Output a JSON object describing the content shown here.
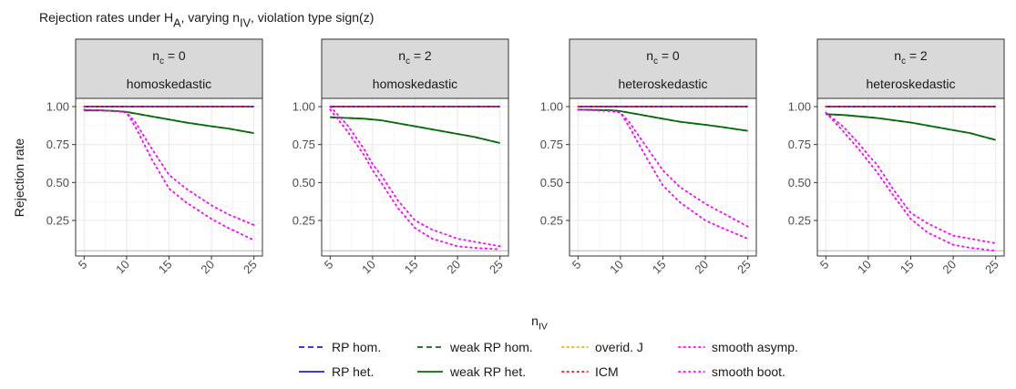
{
  "chart_data": {
    "type": "line",
    "title": [
      {
        "text": "Rejection rates under H"
      },
      {
        "text": "A",
        "sub": true
      },
      {
        "text": ", varying n"
      },
      {
        "text": "IV",
        "sub": true
      },
      {
        "text": ", violation type sign(z)"
      }
    ],
    "xlabel": [
      {
        "text": "n"
      },
      {
        "text": "IV",
        "sub": true
      }
    ],
    "ylabel": "Rejection rate",
    "facets": [
      {
        "label_top": [
          {
            "text": "n"
          },
          {
            "text": "c",
            "sub": true
          },
          {
            "text": " = 0"
          }
        ],
        "label_bottom": "homoskedastic"
      },
      {
        "label_top": [
          {
            "text": "n"
          },
          {
            "text": "c",
            "sub": true
          },
          {
            "text": " = 2"
          }
        ],
        "label_bottom": "homoskedastic"
      },
      {
        "label_top": [
          {
            "text": "n"
          },
          {
            "text": "c",
            "sub": true
          },
          {
            "text": " = 0"
          }
        ],
        "label_bottom": "heteroskedastic"
      },
      {
        "label_top": [
          {
            "text": "n"
          },
          {
            "text": "c",
            "sub": true
          },
          {
            "text": " = 2"
          }
        ],
        "label_bottom": "heteroskedastic"
      }
    ],
    "x": [
      5,
      7,
      9,
      10,
      11,
      13,
      15,
      17,
      20,
      22,
      25
    ],
    "xlim": [
      4,
      26
    ],
    "xticks": [
      5,
      10,
      15,
      20,
      25
    ],
    "ylim": [
      0.016,
      1.054
    ],
    "yticks": [
      {
        "value": 0.25,
        "label": "0.25"
      },
      {
        "value": 0.5,
        "label": "0.50"
      },
      {
        "value": 0.75,
        "label": "0.75"
      },
      {
        "value": 1,
        "label": "1.00"
      }
    ],
    "hline": 0.05,
    "grid": true,
    "series": [
      {
        "name": "RP hom.",
        "color": "#1f1fd6",
        "dash": "dashed",
        "values": [
          [
            1,
            1,
            1,
            1,
            1,
            1,
            1,
            1,
            1,
            1,
            1
          ],
          [
            1,
            1,
            1,
            1,
            1,
            1,
            1,
            1,
            1,
            1,
            1
          ],
          [
            1,
            1,
            1,
            1,
            1,
            1,
            1,
            1,
            1,
            1,
            1
          ],
          [
            1,
            1,
            1,
            1,
            1,
            1,
            1,
            1,
            1,
            1,
            1
          ]
        ]
      },
      {
        "name": "RP het.",
        "color": "#1f1fd6",
        "dash": "solid",
        "values": [
          [
            1,
            1,
            1,
            1,
            1,
            1,
            1,
            1,
            1,
            1,
            1
          ],
          [
            1,
            1,
            1,
            1,
            1,
            1,
            1,
            1,
            1,
            1,
            1
          ],
          [
            1,
            1,
            1,
            1,
            1,
            1,
            1,
            1,
            1,
            1,
            1
          ],
          [
            1,
            1,
            1,
            1,
            1,
            1,
            1,
            1,
            1,
            1,
            1
          ]
        ]
      },
      {
        "name": "weak RP hom.",
        "color": "#0a6b0a",
        "dash": "dashed",
        "values": [
          [
            0.975,
            0.975,
            0.97,
            0.965,
            0.955,
            0.935,
            0.915,
            0.895,
            0.87,
            0.855,
            0.825
          ],
          [
            0.93,
            0.925,
            0.92,
            0.915,
            0.91,
            0.89,
            0.87,
            0.85,
            0.82,
            0.8,
            0.76
          ],
          [
            0.98,
            0.978,
            0.975,
            0.97,
            0.96,
            0.94,
            0.92,
            0.9,
            0.88,
            0.865,
            0.84
          ],
          [
            0.95,
            0.945,
            0.935,
            0.93,
            0.925,
            0.91,
            0.895,
            0.875,
            0.845,
            0.825,
            0.78
          ]
        ]
      },
      {
        "name": "weak RP het.",
        "color": "#0a6b0a",
        "dash": "solid",
        "values": [
          [
            0.975,
            0.975,
            0.97,
            0.965,
            0.955,
            0.935,
            0.915,
            0.895,
            0.87,
            0.855,
            0.825
          ],
          [
            0.93,
            0.925,
            0.92,
            0.915,
            0.91,
            0.89,
            0.87,
            0.85,
            0.82,
            0.8,
            0.76
          ],
          [
            0.98,
            0.978,
            0.975,
            0.97,
            0.96,
            0.94,
            0.92,
            0.9,
            0.88,
            0.865,
            0.84
          ],
          [
            0.95,
            0.945,
            0.935,
            0.93,
            0.925,
            0.91,
            0.895,
            0.875,
            0.845,
            0.825,
            0.78
          ]
        ]
      },
      {
        "name": "overid. J",
        "color": "#ffa500",
        "dash": "dotted",
        "values": [
          [
            1,
            1,
            1,
            1,
            1,
            1,
            1,
            1,
            1,
            1,
            1
          ],
          [
            1,
            1,
            1,
            1,
            1,
            1,
            1,
            1,
            1,
            1,
            1
          ],
          [
            1,
            1,
            1,
            1,
            1,
            1,
            1,
            1,
            1,
            1,
            1
          ],
          [
            1,
            1,
            1,
            1,
            1,
            1,
            1,
            1,
            1,
            1,
            1
          ]
        ]
      },
      {
        "name": "ICM",
        "color": "#e41a1c",
        "dash": "dotted",
        "values": [
          [
            1,
            1,
            1,
            1,
            1,
            1,
            1,
            1,
            1,
            1,
            1
          ],
          [
            1,
            1,
            1,
            1,
            1,
            1,
            1,
            1,
            1,
            1,
            1
          ],
          [
            1,
            1,
            1,
            1,
            1,
            1,
            1,
            1,
            1,
            1,
            1
          ],
          [
            1,
            1,
            1,
            1,
            1,
            1,
            1,
            1,
            1,
            1,
            1
          ]
        ]
      },
      {
        "name": "smooth asymp.",
        "color": "#ff00ff",
        "dash": "dotted",
        "values": [
          [
            0.98,
            0.975,
            0.97,
            0.96,
            0.9,
            0.72,
            0.55,
            0.46,
            0.35,
            0.29,
            0.22
          ],
          [
            1,
            0.88,
            0.72,
            0.62,
            0.55,
            0.38,
            0.25,
            0.19,
            0.13,
            0.11,
            0.08
          ],
          [
            0.98,
            0.975,
            0.97,
            0.96,
            0.9,
            0.74,
            0.58,
            0.47,
            0.36,
            0.3,
            0.21
          ],
          [
            0.96,
            0.87,
            0.75,
            0.68,
            0.62,
            0.45,
            0.3,
            0.23,
            0.15,
            0.13,
            0.1
          ]
        ]
      },
      {
        "name": "smooth boot.",
        "color": "#ff00ff",
        "dash": "dotted",
        "values": [
          [
            0.98,
            0.975,
            0.97,
            0.96,
            0.87,
            0.65,
            0.46,
            0.37,
            0.26,
            0.2,
            0.12
          ],
          [
            0.98,
            0.84,
            0.68,
            0.58,
            0.5,
            0.33,
            0.2,
            0.13,
            0.08,
            0.07,
            0.06
          ],
          [
            0.98,
            0.975,
            0.97,
            0.96,
            0.87,
            0.67,
            0.48,
            0.37,
            0.25,
            0.2,
            0.13
          ],
          [
            0.96,
            0.84,
            0.71,
            0.64,
            0.57,
            0.41,
            0.26,
            0.17,
            0.09,
            0.07,
            0.05
          ]
        ]
      }
    ]
  }
}
